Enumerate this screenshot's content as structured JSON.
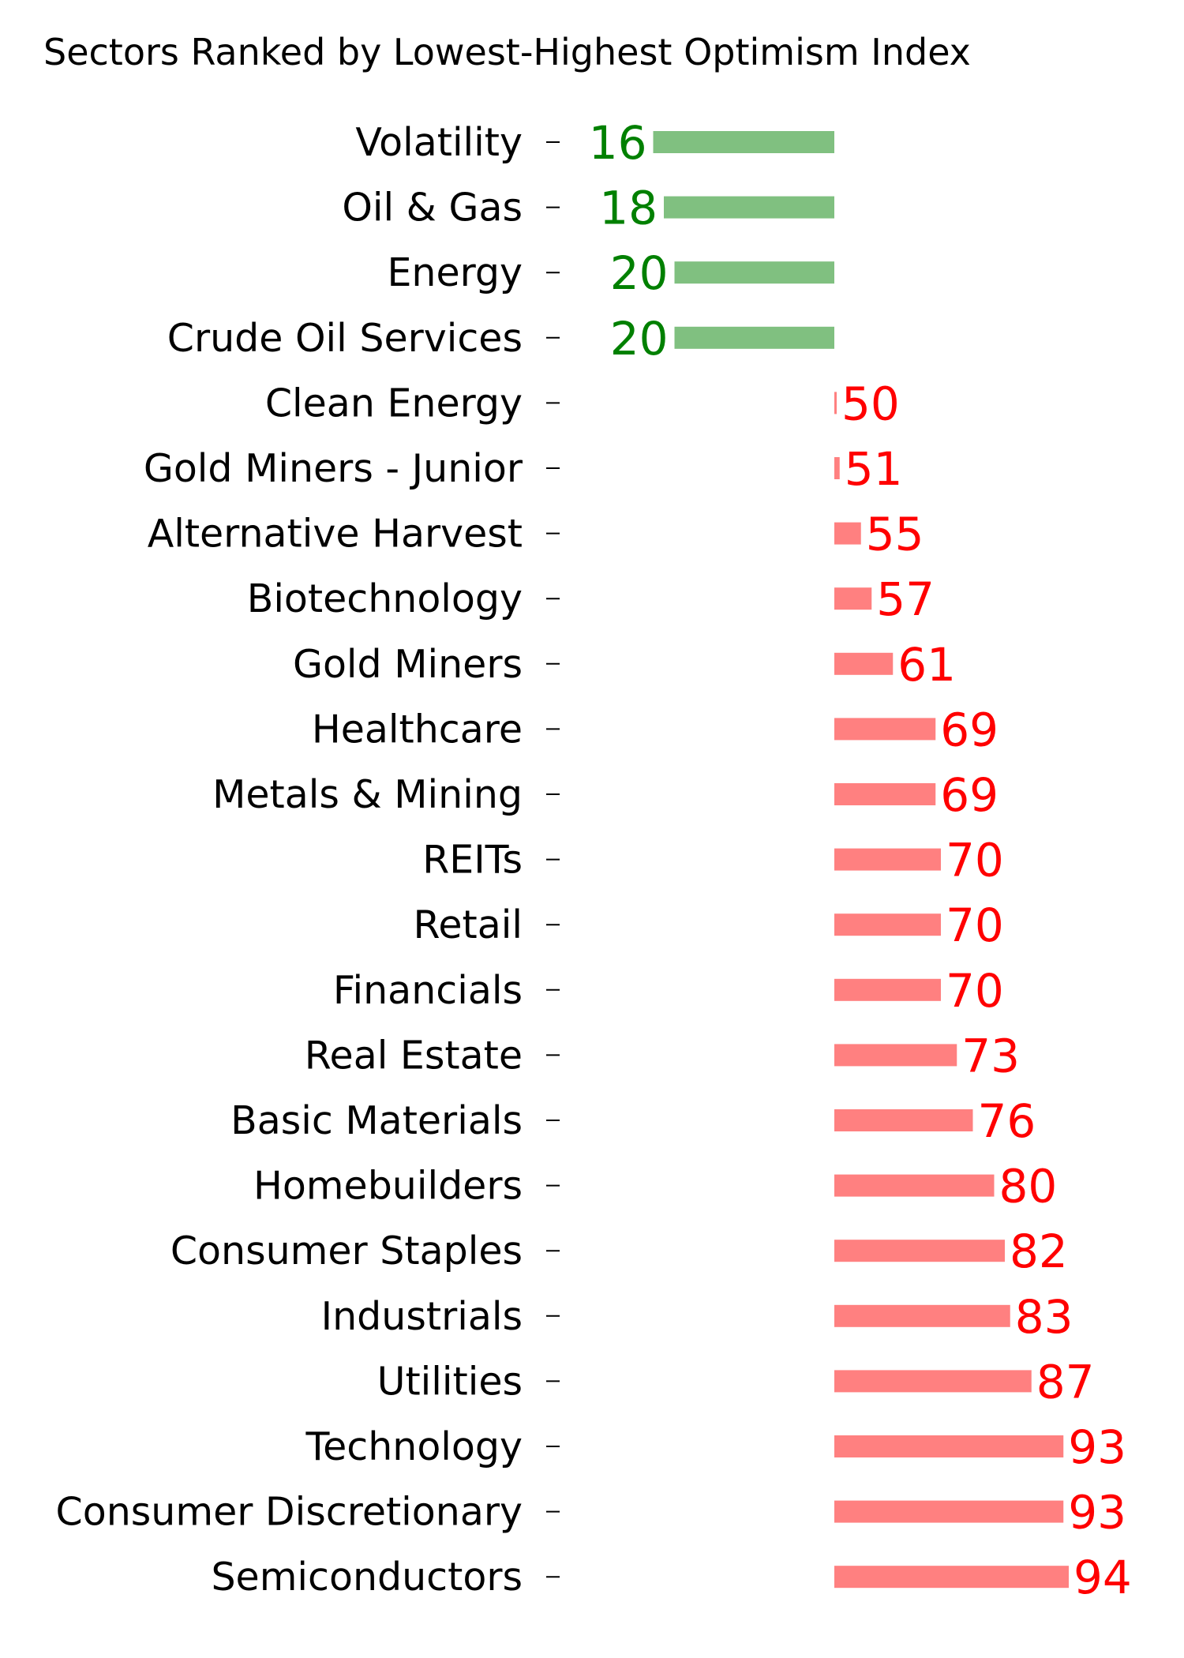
{
  "chart_data": {
    "type": "bar",
    "orientation": "horizontal",
    "title": "Sectors Ranked by Lowest-Highest Optimism Index",
    "xlabel": "",
    "ylabel": "",
    "baseline": 50,
    "xlim": [
      0,
      100
    ],
    "grid": false,
    "legend": "none",
    "categories": [
      "Volatility",
      "Oil & Gas",
      "Energy",
      "Crude Oil Services",
      "Clean Energy",
      "Gold Miners - Junior",
      "Alternative Harvest",
      "Biotechnology",
      "Gold Miners",
      "Healthcare",
      "Metals & Mining",
      "REITs",
      "Retail",
      "Financials",
      "Real Estate",
      "Basic Materials",
      "Homebuilders",
      "Consumer Staples",
      "Industrials",
      "Utilities",
      "Technology",
      "Consumer Discretionary",
      "Semiconductors"
    ],
    "values": [
      16,
      18,
      20,
      20,
      50,
      51,
      55,
      57,
      61,
      69,
      69,
      70,
      70,
      70,
      73,
      76,
      80,
      82,
      83,
      87,
      93,
      93,
      94
    ],
    "colors": {
      "below_baseline_bar": "#80c080",
      "below_baseline_label": "#008000",
      "above_baseline_bar": "#ff8080",
      "above_baseline_label": "#ff0000"
    }
  }
}
